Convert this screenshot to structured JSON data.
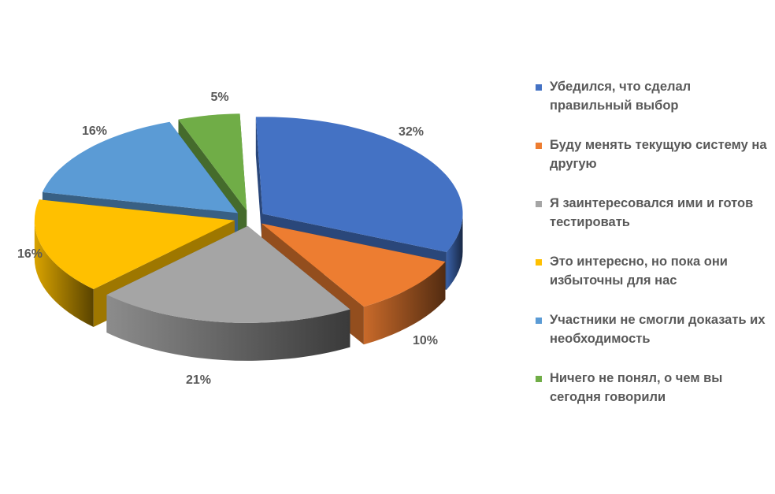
{
  "chart_data": {
    "type": "pie",
    "variant": "3d-exploded",
    "slices": [
      {
        "label": "Убедился, что сделал правильный выбор",
        "value": 32,
        "value_label": "32%",
        "color": "#4472C4"
      },
      {
        "label": "Буду менять текущую систему на другую",
        "value": 10,
        "value_label": "10%",
        "color": "#ED7D31"
      },
      {
        "label": "Я заинтересовался ими и готов тестировать",
        "value": 21,
        "value_label": "21%",
        "color": "#A5A5A5"
      },
      {
        "label": "Это интересно, но пока они избыточны для нас",
        "value": 16,
        "value_label": "16%",
        "color": "#FFC000"
      },
      {
        "label": "Участники не смогли доказать их необходимость",
        "value": 16,
        "value_label": "16%",
        "color": "#5B9BD5"
      },
      {
        "label": "Ничего не понял, о чем вы сегодня говорили",
        "value": 5,
        "value_label": "5%",
        "color": "#70AD47"
      }
    ],
    "legend_position": "right",
    "data_labels": "outside"
  }
}
